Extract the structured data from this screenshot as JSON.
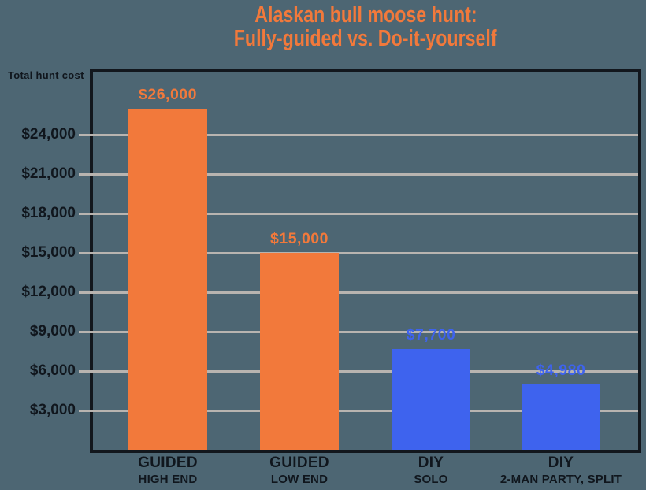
{
  "title": {
    "line1": "Alaskan bull moose hunt:",
    "line2": "Fully-guided vs. Do-it-yourself"
  },
  "colors": {
    "background": "#4d6673",
    "orange": "#f2793b",
    "blue": "#3e63ee",
    "grid": "#b8b4b0",
    "frame": "#12171d",
    "text": "#10161d"
  },
  "chart_data": {
    "type": "bar",
    "title": "Alaskan bull moose hunt: Fully-guided vs. Do-it-yourself",
    "ylabel": "Total hunt cost",
    "xlabel": "",
    "ylim": [
      0,
      28740
    ],
    "grid": true,
    "legend": false,
    "yticks": [
      {
        "value": 3000,
        "label": "$3,000"
      },
      {
        "value": 6000,
        "label": "$6,000"
      },
      {
        "value": 9000,
        "label": "$9,000"
      },
      {
        "value": 12000,
        "label": "$12,000"
      },
      {
        "value": 15000,
        "label": "$15,000"
      },
      {
        "value": 18000,
        "label": "$18,000"
      },
      {
        "value": 21000,
        "label": "$21,000"
      },
      {
        "value": 24000,
        "label": "$24,000"
      }
    ],
    "categories": [
      {
        "line1": "GUIDED",
        "line2": "HIGH END"
      },
      {
        "line1": "GUIDED",
        "line2": "LOW END"
      },
      {
        "line1": "DIY",
        "line2": "SOLO"
      },
      {
        "line1": "DIY",
        "line2": "2-MAN PARTY, SPLIT"
      }
    ],
    "values": [
      26000,
      15000,
      7700,
      4980
    ],
    "value_labels": [
      "$26,000",
      "$15,000",
      "$7,700",
      "$4,980"
    ],
    "bar_colors": [
      "#f2793b",
      "#f2793b",
      "#3e63ee",
      "#3e63ee"
    ]
  }
}
